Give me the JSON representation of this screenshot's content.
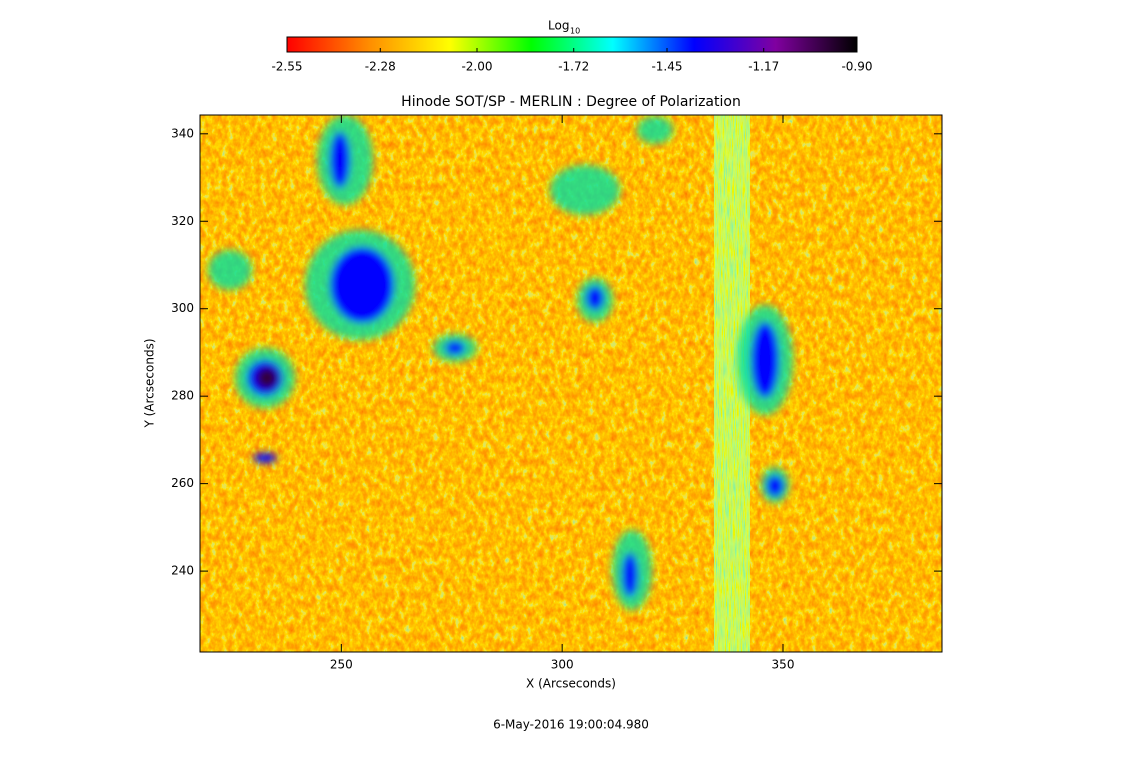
{
  "chart_data": {
    "type": "heatmap",
    "title": "Hinode SOT/SP - MERLIN : Degree of Polarization",
    "x_label": "X (Arcseconds)",
    "y_label": "Y (Arcseconds)",
    "footer": "6-May-2016 19:00:04.980",
    "colorbar_label": {
      "base": "Log",
      "subscript": "10"
    },
    "colormap": [
      "#ff0000",
      "#ff8c00",
      "#ffff00",
      "#00ff00",
      "#00ffff",
      "#0000ff",
      "#8000a0",
      "#000000"
    ],
    "clim": [
      -2.55,
      -0.9
    ],
    "cticks": [
      -2.55,
      -2.28,
      {
        "value": -2.0,
        "label": "-2.00"
      },
      -1.72,
      -1.45,
      -1.17,
      {
        "value": -0.9,
        "label": "-0.90"
      }
    ],
    "xlim": [
      218,
      386
    ],
    "xticks": [
      250,
      300,
      350
    ],
    "ylim": [
      221.5,
      344.3
    ],
    "yticks": [
      240,
      260,
      280,
      300,
      320,
      340
    ]
  }
}
